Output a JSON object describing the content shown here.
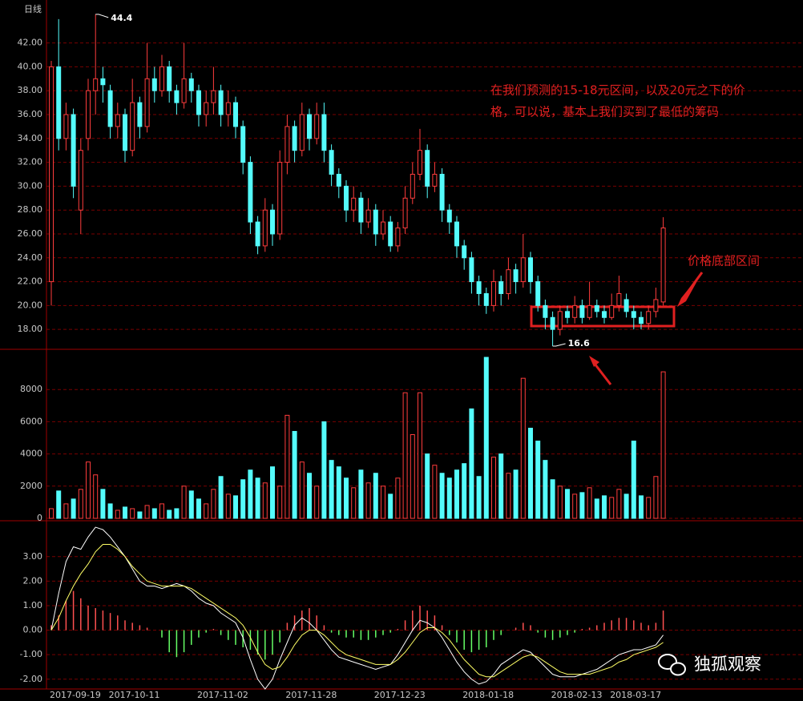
{
  "chart_data": {
    "type": "candlestick",
    "period_label": "日线",
    "categories": [
      "2017-09-19",
      null,
      null,
      null,
      null,
      null,
      null,
      null,
      "2017-10-11",
      null,
      null,
      null,
      null,
      null,
      null,
      null,
      null,
      null,
      null,
      null,
      "2017-11-02",
      null,
      null,
      null,
      null,
      null,
      null,
      null,
      null,
      null,
      null,
      null,
      "2017-11-28",
      null,
      null,
      null,
      null,
      null,
      null,
      null,
      null,
      null,
      null,
      null,
      "2017-12-23",
      null,
      null,
      null,
      null,
      null,
      null,
      null,
      null,
      null,
      null,
      null,
      "2018-01-18",
      null,
      null,
      null,
      null,
      null,
      null,
      null,
      null,
      null,
      null,
      null,
      "2018-02-13",
      null,
      null,
      null,
      null,
      null,
      null,
      null,
      "2018-03-17",
      null,
      null,
      null,
      null,
      null,
      null,
      null
    ],
    "price": {
      "open": [
        22,
        40,
        34,
        36,
        28,
        34,
        38,
        39,
        38,
        35,
        36,
        33,
        37,
        35,
        39,
        38,
        40,
        38,
        37,
        39,
        38,
        36,
        37,
        38,
        36,
        37,
        35,
        32,
        27,
        25,
        28,
        26,
        32,
        35,
        33,
        36,
        34,
        36,
        33,
        31,
        30,
        28,
        29,
        27,
        28,
        26,
        27,
        25,
        26.5,
        29,
        31,
        33,
        30,
        31,
        28,
        27,
        25,
        24,
        22,
        21,
        20,
        22,
        21,
        23,
        22,
        24,
        22,
        20,
        19,
        18,
        19.5,
        19,
        20,
        19,
        20,
        19.5,
        19,
        20,
        20.5,
        19.5,
        19,
        18.5,
        19.5,
        20.3
      ],
      "high": [
        40.5,
        44,
        37,
        36.5,
        34,
        39,
        44.4,
        40,
        38.5,
        37,
        36.5,
        39,
        37.5,
        42,
        40,
        41,
        40.5,
        38.5,
        42,
        39.5,
        38.5,
        38,
        40,
        38.5,
        38,
        37.5,
        35.5,
        32.5,
        27.5,
        29,
        28.5,
        33,
        36,
        35.5,
        37,
        36.5,
        37,
        37,
        33.5,
        31.5,
        30.5,
        30,
        29.5,
        29,
        28.5,
        28,
        27.5,
        27,
        30,
        32,
        34.8,
        33.5,
        32,
        31.5,
        28.5,
        27.5,
        25.5,
        24.5,
        22.5,
        21.5,
        23,
        22.5,
        24,
        23.5,
        26,
        24.5,
        22.5,
        20.5,
        19.5,
        20,
        20,
        20.8,
        20.5,
        22,
        20.5,
        20,
        21,
        22.5,
        21,
        20,
        19.5,
        20,
        21.5,
        27.4
      ],
      "low": [
        20,
        33,
        33,
        29,
        26,
        33,
        36,
        37,
        34,
        34,
        32,
        32.5,
        34,
        34.5,
        37,
        37.5,
        37,
        36,
        36.5,
        37,
        35,
        35,
        36,
        35,
        35,
        34,
        31,
        26,
        24.3,
        24.5,
        25,
        25.5,
        31,
        32,
        32.5,
        33,
        33.5,
        32,
        30,
        29,
        27,
        27,
        26,
        26.5,
        25,
        25.5,
        24.5,
        24.5,
        26,
        28.5,
        30.5,
        29,
        29.5,
        27,
        26,
        24,
        23,
        21,
        20,
        19.3,
        19.5,
        20,
        20.5,
        21,
        21.5,
        21,
        19.5,
        18,
        16.6,
        17.5,
        18.5,
        18.5,
        18.5,
        18.8,
        19,
        18.5,
        18.8,
        19.5,
        19,
        18,
        18,
        18,
        19,
        20
      ],
      "close": [
        40,
        34,
        36,
        30,
        33,
        38,
        39,
        38.5,
        35,
        36,
        33,
        37,
        35,
        39,
        38,
        40,
        38,
        37,
        39,
        38,
        36,
        37,
        38,
        36,
        37,
        35,
        32,
        27,
        25,
        28,
        26,
        32,
        35,
        33,
        36,
        34,
        36,
        33,
        31,
        30,
        28,
        29,
        27,
        28,
        26,
        27,
        25,
        26.5,
        29,
        31,
        33,
        30,
        31,
        28,
        27,
        25,
        24,
        22,
        21,
        20,
        22,
        21,
        23,
        22,
        24,
        22,
        20,
        19,
        18,
        19.5,
        19,
        20,
        19,
        20,
        19.5,
        19,
        20,
        21,
        19.5,
        19,
        18.5,
        19.5,
        20.5,
        26.5
      ],
      "up_color": "#ff3c3c",
      "down_color": "#54fcfc",
      "ylim": [
        16.4,
        45.6
      ],
      "yticks": [
        {
          "value": 18,
          "label": "18.00"
        },
        {
          "value": 20,
          "label": "20.00"
        },
        {
          "value": 22,
          "label": "22.00"
        },
        {
          "value": 24,
          "label": "24.00"
        },
        {
          "value": 26,
          "label": "26.00"
        },
        {
          "value": 28,
          "label": "28.00"
        },
        {
          "value": 30,
          "label": "30.00"
        },
        {
          "value": 32,
          "label": "32.00"
        },
        {
          "value": 34,
          "label": "34.00"
        },
        {
          "value": 36,
          "label": "36.00"
        },
        {
          "value": 38,
          "label": "38.00"
        },
        {
          "value": 40,
          "label": "40.00"
        },
        {
          "value": 42,
          "label": "42.00"
        }
      ],
      "high_label": "44.4",
      "low_label": "16.6"
    },
    "volume": {
      "values": [
        600,
        1700,
        900,
        1200,
        1800,
        3500,
        2700,
        1800,
        900,
        500,
        700,
        600,
        400,
        800,
        600,
        900,
        500,
        600,
        2000,
        1700,
        1200,
        900,
        1800,
        2600,
        1500,
        1400,
        2400,
        3000,
        2500,
        2200,
        3200,
        2000,
        6400,
        5400,
        3500,
        2800,
        2000,
        6000,
        3600,
        3200,
        2500,
        1900,
        3000,
        2200,
        2800,
        2000,
        1500,
        2500,
        7800,
        5200,
        7800,
        4000,
        3300,
        2800,
        2500,
        3000,
        3400,
        6800,
        2600,
        10000,
        3800,
        4000,
        2800,
        3000,
        8700,
        5600,
        4800,
        3600,
        2400,
        2000,
        1800,
        1500,
        1600,
        1900,
        1200,
        1400,
        1300,
        1800,
        1500,
        4800,
        1400,
        1300,
        2600,
        9100
      ],
      "ylim": [
        0,
        10300
      ],
      "yticks": [
        0,
        2000,
        4000,
        6000,
        8000
      ]
    },
    "macd": {
      "hist": [
        0.2,
        0.6,
        1.2,
        1.6,
        1.3,
        1.0,
        0.9,
        0.8,
        0.7,
        0.6,
        0.4,
        0.3,
        0.2,
        0.1,
        0,
        -0.3,
        -0.9,
        -1.1,
        -0.9,
        -0.6,
        -0.3,
        -0.1,
        0.05,
        -0.2,
        -0.4,
        -0.6,
        -0.7,
        -0.8,
        -1.0,
        -1.2,
        -1.0,
        -0.5,
        0.3,
        0.6,
        0.8,
        0.9,
        0.6,
        0.2,
        -0.1,
        -0.2,
        -0.3,
        -0.3,
        -0.4,
        -0.4,
        -0.3,
        -0.2,
        -0.1,
        0.05,
        0.4,
        0.8,
        1.0,
        0.8,
        0.6,
        0.2,
        -0.2,
        -0.5,
        -0.8,
        -0.9,
        -0.8,
        -0.7,
        -0.4,
        -0.2,
        0,
        0.1,
        0.3,
        0.2,
        -0.1,
        -0.3,
        -0.4,
        -0.3,
        -0.2,
        -0.1,
        0.05,
        0.1,
        0.2,
        0.3,
        0.4,
        0.5,
        0.5,
        0.4,
        0.3,
        0.2,
        0.3,
        0.8
      ],
      "dif": [
        0,
        1.5,
        2.8,
        3.4,
        3.3,
        3.8,
        4.2,
        4.1,
        3.8,
        3.4,
        3.0,
        2.5,
        2.0,
        1.8,
        1.8,
        1.7,
        1.8,
        1.9,
        1.8,
        1.6,
        1.3,
        1.1,
        1.0,
        0.7,
        0.5,
        0.3,
        -0.3,
        -1.2,
        -2.0,
        -2.4,
        -2.0,
        -1.2,
        -0.5,
        0.2,
        0.5,
        0.3,
        0,
        -0.4,
        -0.8,
        -1.1,
        -1.2,
        -1.3,
        -1.4,
        -1.5,
        -1.6,
        -1.5,
        -1.4,
        -1.0,
        -0.5,
        0,
        0.4,
        0.3,
        0.1,
        -0.3,
        -0.8,
        -1.3,
        -1.7,
        -2.0,
        -2.2,
        -2.1,
        -1.8,
        -1.4,
        -1.2,
        -1.0,
        -0.8,
        -0.9,
        -1.2,
        -1.5,
        -1.8,
        -1.9,
        -1.9,
        -1.9,
        -1.8,
        -1.7,
        -1.6,
        -1.4,
        -1.2,
        -1.0,
        -0.9,
        -0.8,
        -0.8,
        -0.7,
        -0.6,
        -0.2
      ],
      "dea": [
        0,
        0.5,
        1.2,
        1.8,
        2.3,
        2.7,
        3.2,
        3.5,
        3.5,
        3.3,
        3.0,
        2.6,
        2.3,
        2.0,
        1.9,
        1.8,
        1.8,
        1.8,
        1.8,
        1.7,
        1.5,
        1.3,
        1.1,
        0.9,
        0.7,
        0.5,
        0.2,
        -0.3,
        -0.9,
        -1.4,
        -1.6,
        -1.5,
        -1.1,
        -0.6,
        -0.2,
        0,
        0,
        -0.2,
        -0.5,
        -0.8,
        -1.0,
        -1.1,
        -1.2,
        -1.3,
        -1.4,
        -1.4,
        -1.4,
        -1.2,
        -0.9,
        -0.5,
        -0.1,
        0.1,
        0.1,
        -0.1,
        -0.4,
        -0.8,
        -1.2,
        -1.5,
        -1.8,
        -1.9,
        -1.9,
        -1.7,
        -1.5,
        -1.3,
        -1.1,
        -1.0,
        -1.1,
        -1.3,
        -1.5,
        -1.7,
        -1.8,
        -1.8,
        -1.8,
        -1.8,
        -1.7,
        -1.6,
        -1.5,
        -1.3,
        -1.2,
        -1.0,
        -0.9,
        -0.8,
        -0.7,
        -0.5
      ],
      "dif_color": "#ffffff",
      "dea_color": "#ffff66",
      "pos_color": "#ff5050",
      "neg_color": "#66ff66",
      "ylim": [
        -2.4,
        4.3
      ],
      "yticks": [
        {
          "value": -2,
          "label": "-2.00"
        },
        {
          "value": -1,
          "label": "-1.00"
        },
        {
          "value": 0,
          "label": "0.00"
        },
        {
          "value": 1,
          "label": "1.00"
        },
        {
          "value": 2,
          "label": "2.00"
        },
        {
          "value": 3,
          "label": "3.00"
        }
      ]
    },
    "annotations": {
      "note": [
        "在我们预测的15-18元区间，以及20元之下的价",
        "格，可以说，基本上我们买到了最低的筹码"
      ],
      "zone": "价格底部区间"
    },
    "watermark": "独孤观察"
  }
}
